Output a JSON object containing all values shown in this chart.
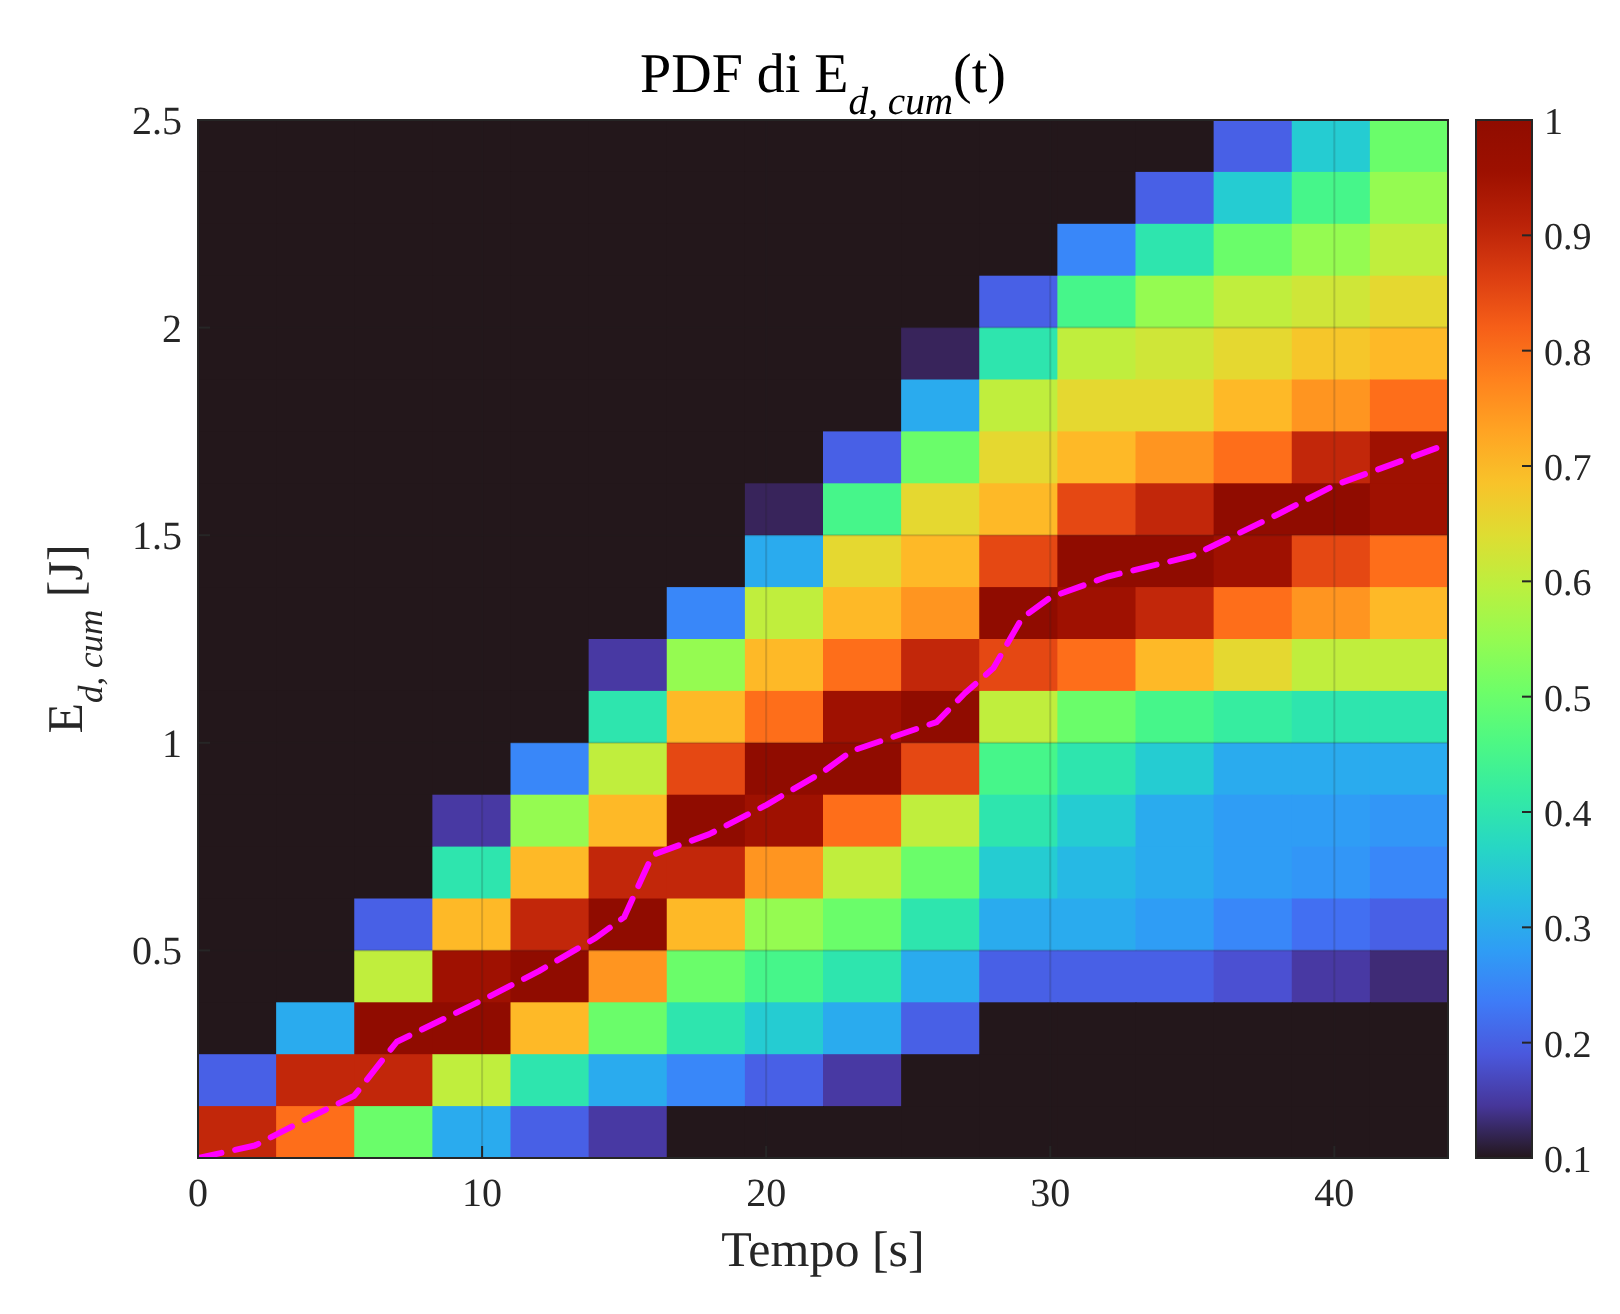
{
  "chart_data": [
    {
      "type": "heatmap",
      "title": "PDF di E$_{d, cum}$(t)",
      "categories": [
        null,
        null,
        null,
        null,
        null,
        null,
        null,
        null,
        null,
        null,
        null,
        null,
        null,
        null,
        null,
        null
      ],
      "y_categories": [
        null,
        null,
        null,
        null,
        null,
        null,
        null,
        null,
        null,
        null,
        null,
        null,
        null,
        null,
        null,
        null,
        null,
        null,
        null,
        null
      ],
      "clim": [
        0.1,
        1
      ],
      "cticks": [
        0.1,
        0.2,
        0.3,
        0.4,
        0.5,
        0.6,
        0.7,
        0.8,
        0.9,
        1
      ],
      "cells": [
        [
          0.1,
          0.1,
          0.1,
          0.1,
          0.1,
          0.1,
          0.1,
          0.1,
          0.1,
          0.1,
          0.1,
          0.1,
          0.1,
          0.2,
          0.35,
          0.5
        ],
        [
          0.1,
          0.1,
          0.1,
          0.1,
          0.1,
          0.1,
          0.1,
          0.1,
          0.1,
          0.1,
          0.1,
          0.1,
          0.2,
          0.35,
          0.45,
          0.55
        ],
        [
          0.1,
          0.1,
          0.1,
          0.1,
          0.1,
          0.1,
          0.1,
          0.1,
          0.1,
          0.1,
          0.1,
          0.25,
          0.4,
          0.5,
          0.55,
          0.6
        ],
        [
          0.1,
          0.1,
          0.1,
          0.1,
          0.1,
          0.1,
          0.1,
          0.1,
          0.1,
          0.1,
          0.2,
          0.45,
          0.55,
          0.6,
          0.62,
          0.65
        ],
        [
          0.1,
          0.1,
          0.1,
          0.1,
          0.1,
          0.1,
          0.1,
          0.1,
          0.1,
          0.12,
          0.4,
          0.6,
          0.62,
          0.65,
          0.68,
          0.7
        ],
        [
          0.1,
          0.1,
          0.1,
          0.1,
          0.1,
          0.1,
          0.1,
          0.1,
          0.1,
          0.3,
          0.6,
          0.65,
          0.65,
          0.7,
          0.75,
          0.8
        ],
        [
          0.1,
          0.1,
          0.1,
          0.1,
          0.1,
          0.1,
          0.1,
          0.1,
          0.2,
          0.5,
          0.65,
          0.7,
          0.75,
          0.8,
          0.9,
          0.95
        ],
        [
          0.1,
          0.1,
          0.1,
          0.1,
          0.1,
          0.1,
          0.1,
          0.12,
          0.45,
          0.65,
          0.7,
          0.85,
          0.9,
          1,
          1,
          0.95
        ],
        [
          0.1,
          0.1,
          0.1,
          0.1,
          0.1,
          0.1,
          0.1,
          0.3,
          0.65,
          0.7,
          0.85,
          1,
          1,
          0.95,
          0.85,
          0.8
        ],
        [
          0.1,
          0.1,
          0.1,
          0.1,
          0.1,
          0.1,
          0.25,
          0.6,
          0.7,
          0.75,
          1,
          0.95,
          0.9,
          0.8,
          0.75,
          0.7
        ],
        [
          0.1,
          0.1,
          0.1,
          0.1,
          0.1,
          0.15,
          0.55,
          0.7,
          0.8,
          0.9,
          0.85,
          0.8,
          0.7,
          0.65,
          0.6,
          0.6
        ],
        [
          0.1,
          0.1,
          0.1,
          0.1,
          0.1,
          0.4,
          0.7,
          0.8,
          0.95,
          1,
          0.6,
          0.5,
          0.45,
          0.42,
          0.4,
          0.4
        ],
        [
          0.1,
          0.1,
          0.1,
          0.1,
          0.25,
          0.6,
          0.85,
          1,
          1,
          0.85,
          0.45,
          0.4,
          0.35,
          0.3,
          0.3,
          0.3
        ],
        [
          0.1,
          0.1,
          0.1,
          0.15,
          0.55,
          0.7,
          1,
          0.95,
          0.8,
          0.6,
          0.4,
          0.35,
          0.3,
          0.28,
          0.28,
          0.27
        ],
        [
          0.1,
          0.1,
          0.1,
          0.4,
          0.7,
          0.9,
          0.9,
          0.75,
          0.6,
          0.5,
          0.35,
          0.32,
          0.3,
          0.28,
          0.27,
          0.25
        ],
        [
          0.1,
          0.1,
          0.2,
          0.7,
          0.9,
          1,
          0.7,
          0.55,
          0.5,
          0.4,
          0.3,
          0.3,
          0.28,
          0.25,
          0.22,
          0.2
        ],
        [
          0.1,
          0.1,
          0.6,
          0.95,
          1,
          0.75,
          0.5,
          0.45,
          0.4,
          0.3,
          0.2,
          0.2,
          0.2,
          0.18,
          0.15,
          0.13
        ],
        [
          0.1,
          0.3,
          1,
          1,
          0.7,
          0.5,
          0.4,
          0.35,
          0.3,
          0.2,
          0.1,
          0.1,
          0.1,
          0.1,
          0.1,
          0.1
        ],
        [
          0.2,
          0.9,
          0.9,
          0.6,
          0.4,
          0.3,
          0.25,
          0.2,
          0.15,
          0.1,
          0.1,
          0.1,
          0.1,
          0.1,
          0.1,
          0.1
        ],
        [
          0.9,
          0.8,
          0.5,
          0.3,
          0.2,
          0.15,
          0.1,
          0.1,
          0.1,
          0.1,
          0.1,
          0.1,
          0.1,
          0.1,
          0.1,
          0.1
        ]
      ]
    },
    {
      "type": "line",
      "xlabel": "Tempo [s]",
      "ylabel": "E$_{d, cum}$ [J]",
      "xlim": [
        0,
        44
      ],
      "xticks": [
        0,
        10,
        20,
        30,
        40
      ],
      "ylim": [
        0,
        2.5
      ],
      "yticks": [
        0.5,
        1,
        1.5,
        2,
        2.5
      ],
      "grid": true,
      "line_style": "dashed",
      "color": "#ff00ff",
      "x": [
        0,
        2,
        4,
        5.5,
        7,
        10,
        12,
        14,
        15,
        16,
        18,
        20,
        22,
        23,
        26,
        27,
        28,
        29,
        30,
        32,
        35,
        38,
        40,
        42,
        44
      ],
      "values": [
        0,
        0.03,
        0.1,
        0.15,
        0.28,
        0.38,
        0.45,
        0.53,
        0.58,
        0.73,
        0.78,
        0.85,
        0.93,
        0.98,
        1.05,
        1.12,
        1.18,
        1.3,
        1.35,
        1.4,
        1.45,
        1.55,
        1.62,
        1.67,
        1.72
      ]
    }
  ]
}
